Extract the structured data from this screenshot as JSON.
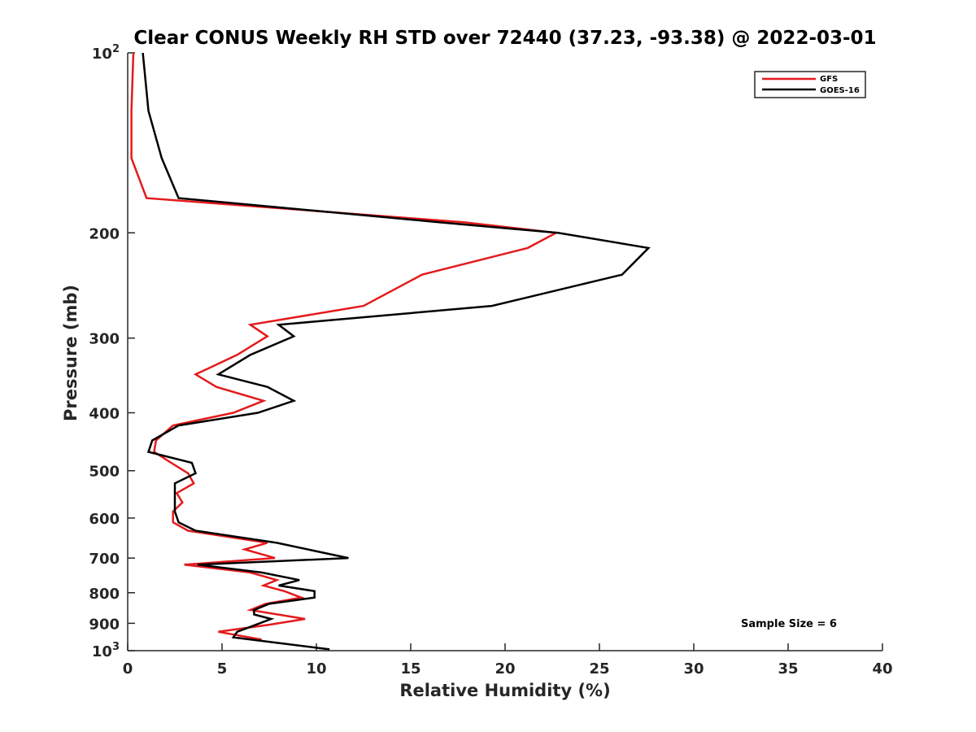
{
  "chart_data": {
    "type": "line",
    "title": "Clear CONUS Weekly RH STD over 72440 (37.23, -93.38) @ 2022-03-01",
    "xlabel": "Relative Humidity (%)",
    "ylabel": "Pressure (mb)",
    "xlim": [
      0,
      40
    ],
    "ylim": [
      100,
      1000
    ],
    "y_scale": "log",
    "y_reversed": true,
    "grid": false,
    "legend_position": "top-right",
    "x_ticks": [
      "0",
      "5",
      "10",
      "15",
      "20",
      "25",
      "30",
      "35",
      "40"
    ],
    "x_tick_values": [
      0,
      5,
      10,
      15,
      20,
      25,
      30,
      35,
      40
    ],
    "y_tick_values": [
      100,
      200,
      300,
      400,
      500,
      600,
      700,
      800,
      900,
      1000
    ],
    "y_ticks": [
      {
        "value": 100,
        "base": "10",
        "exp": "2"
      },
      {
        "value": 200,
        "base": "200",
        "exp": ""
      },
      {
        "value": 300,
        "base": "300",
        "exp": ""
      },
      {
        "value": 400,
        "base": "400",
        "exp": ""
      },
      {
        "value": 500,
        "base": "500",
        "exp": ""
      },
      {
        "value": 600,
        "base": "600",
        "exp": ""
      },
      {
        "value": 700,
        "base": "700",
        "exp": ""
      },
      {
        "value": 800,
        "base": "800",
        "exp": ""
      },
      {
        "value": 900,
        "base": "900",
        "exp": ""
      },
      {
        "value": 1000,
        "base": "10",
        "exp": "3"
      }
    ],
    "annotation": "Sample Size = 6",
    "series": [
      {
        "name": "GFS",
        "color": "#e41a1c",
        "points": [
          [
            0.3,
            100
          ],
          [
            0.2,
            125
          ],
          [
            0.2,
            150
          ],
          [
            1.0,
            175
          ],
          [
            17.8,
            192
          ],
          [
            22.7,
            200
          ],
          [
            21.2,
            212
          ],
          [
            15.6,
            235
          ],
          [
            12.5,
            265
          ],
          [
            6.5,
            285
          ],
          [
            7.4,
            298
          ],
          [
            5.8,
            320
          ],
          [
            3.6,
            345
          ],
          [
            4.7,
            362
          ],
          [
            7.2,
            382
          ],
          [
            5.6,
            400
          ],
          [
            2.4,
            420
          ],
          [
            1.5,
            445
          ],
          [
            1.4,
            465
          ],
          [
            2.3,
            485
          ],
          [
            3.2,
            505
          ],
          [
            3.5,
            525
          ],
          [
            2.6,
            545
          ],
          [
            2.9,
            565
          ],
          [
            2.4,
            585
          ],
          [
            2.4,
            610
          ],
          [
            3.2,
            630
          ],
          [
            7.4,
            660
          ],
          [
            6.2,
            677
          ],
          [
            7.8,
            700
          ],
          [
            3.0,
            718
          ],
          [
            6.5,
            740
          ],
          [
            7.9,
            762
          ],
          [
            7.2,
            778
          ],
          [
            8.3,
            795
          ],
          [
            9.2,
            815
          ],
          [
            7.3,
            835
          ],
          [
            6.5,
            855
          ],
          [
            9.4,
            885
          ],
          [
            7.5,
            905
          ],
          [
            4.8,
            930
          ],
          [
            7.1,
            958
          ]
        ]
      },
      {
        "name": "GOES-16",
        "color": "#000000",
        "points": [
          [
            0.8,
            100
          ],
          [
            1.1,
            125
          ],
          [
            1.8,
            150
          ],
          [
            2.7,
            175
          ],
          [
            16.5,
            192
          ],
          [
            22.8,
            200
          ],
          [
            27.6,
            212
          ],
          [
            26.2,
            235
          ],
          [
            19.3,
            265
          ],
          [
            8.0,
            285
          ],
          [
            8.8,
            298
          ],
          [
            6.5,
            320
          ],
          [
            4.8,
            345
          ],
          [
            7.4,
            362
          ],
          [
            8.8,
            382
          ],
          [
            6.9,
            400
          ],
          [
            2.7,
            420
          ],
          [
            1.3,
            445
          ],
          [
            1.1,
            465
          ],
          [
            3.4,
            485
          ],
          [
            3.6,
            505
          ],
          [
            2.5,
            525
          ],
          [
            2.5,
            545
          ],
          [
            2.5,
            565
          ],
          [
            2.5,
            585
          ],
          [
            2.7,
            610
          ],
          [
            3.6,
            630
          ],
          [
            7.9,
            660
          ],
          [
            11.7,
            700
          ],
          [
            3.7,
            718
          ],
          [
            7.1,
            740
          ],
          [
            9.1,
            762
          ],
          [
            8.0,
            778
          ],
          [
            9.9,
            795
          ],
          [
            9.9,
            815
          ],
          [
            7.5,
            835
          ],
          [
            6.7,
            855
          ],
          [
            6.7,
            870
          ],
          [
            7.6,
            885
          ],
          [
            6.8,
            905
          ],
          [
            5.8,
            930
          ],
          [
            5.6,
            950
          ],
          [
            10.7,
            995
          ]
        ]
      }
    ]
  }
}
